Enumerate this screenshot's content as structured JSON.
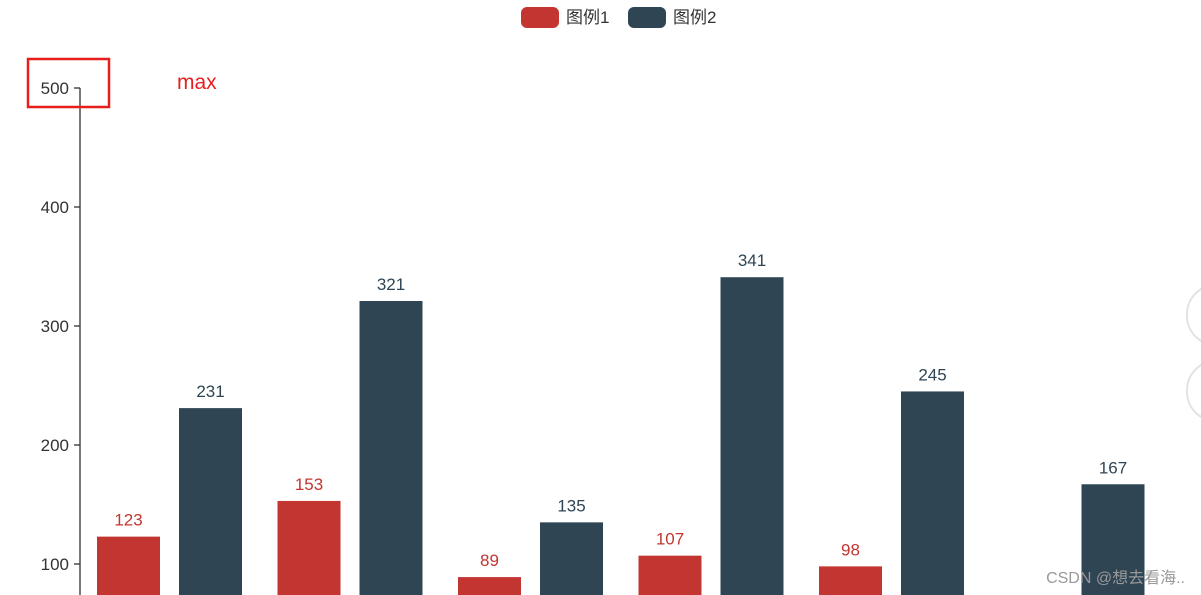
{
  "chart_data": {
    "type": "bar",
    "categories": [
      "",
      "",
      "",
      "",
      "",
      ""
    ],
    "series": [
      {
        "name": "图例1",
        "color": "#c23531",
        "values": [
          123,
          153,
          89,
          107,
          98,
          null
        ]
      },
      {
        "name": "图例2",
        "color": "#2f4554",
        "values": [
          231,
          321,
          135,
          341,
          245,
          167
        ]
      }
    ],
    "yticks": [
      "100",
      "200",
      "300",
      "400",
      "500"
    ],
    "ylim": [
      75,
      500
    ],
    "legend_position": "top-center",
    "grid": false,
    "annotation": {
      "text": "max",
      "color": "#e81e1e",
      "highlight": "500-tick-label"
    }
  },
  "watermark": "CSDN @想去看海.."
}
